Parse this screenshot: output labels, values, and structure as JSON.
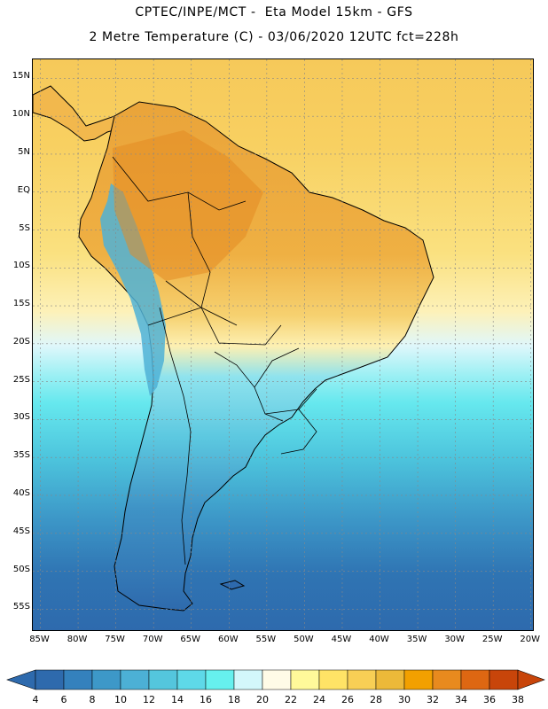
{
  "header": {
    "line1": "CPTEC/INPE/MCT -  Eta Model 15km - GFS",
    "line2": "2 Metre Temperature (C) - 03/06/2020 12UTC fct=228h"
  },
  "map": {
    "lat_labels": [
      "15N",
      "10N",
      "5N",
      "EQ",
      "5S",
      "10S",
      "15S",
      "20S",
      "25S",
      "30S",
      "35S",
      "40S",
      "45S",
      "50S",
      "55S"
    ],
    "lat_values": [
      15,
      10,
      5,
      0,
      -5,
      -10,
      -15,
      -20,
      -25,
      -30,
      -35,
      -40,
      -45,
      -50,
      -55
    ],
    "lon_labels": [
      "85W",
      "80W",
      "75W",
      "70W",
      "65W",
      "60W",
      "55W",
      "50W",
      "45W",
      "40W",
      "35W",
      "30W",
      "25W",
      "20W"
    ],
    "lon_values": [
      -85,
      -80,
      -75,
      -70,
      -65,
      -60,
      -55,
      -50,
      -45,
      -40,
      -35,
      -30,
      -25,
      -20
    ],
    "extent": {
      "lon_min": -86,
      "lon_max": -19.5,
      "lat_min": -58,
      "lat_max": 17.5
    }
  },
  "legend": {
    "labels": [
      "4",
      "6",
      "8",
      "10",
      "12",
      "14",
      "16",
      "18",
      "20",
      "22",
      "24",
      "26",
      "28",
      "30",
      "32",
      "34",
      "36",
      "38"
    ],
    "colors": [
      "#2e6aad",
      "#3481bd",
      "#3d98c8",
      "#4cb0d5",
      "#54c6dd",
      "#5ed9e8",
      "#66f0ee",
      "#d3f7fb",
      "#fffbe7",
      "#fff99a",
      "#ffe366",
      "#f8cf55",
      "#ecb939",
      "#f2a000",
      "#e88a1e",
      "#de6712",
      "#c8450a"
    ],
    "low_color": "#2e6aad",
    "high_color": "#c8450a"
  }
}
